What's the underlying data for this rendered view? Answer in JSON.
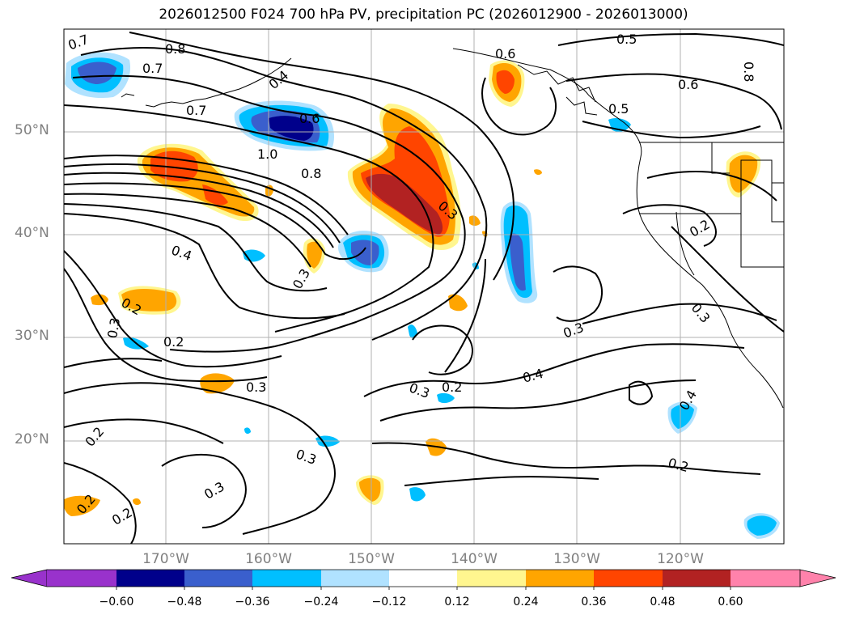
{
  "title": "2026012500 F024 700 hPa PV, precipitation PC (2026012900 - 2026013000)",
  "axes": {
    "lat_labels": [
      "50°N",
      "40°N",
      "30°N",
      "20°N"
    ],
    "lon_labels": [
      "170°W",
      "160°W",
      "150°W",
      "140°W",
      "130°W",
      "120°W"
    ]
  },
  "contour_labels": [
    "0.7",
    "0.8",
    "0.7",
    "0.4",
    "0.7",
    "0.6",
    "1.0",
    "0.8",
    "0.6",
    "0.5",
    "0.6",
    "0.8",
    "0.5",
    "0.3",
    "0.4",
    "0.3",
    "0.2",
    "0.2",
    "0.3",
    "0.2",
    "0.3",
    "0.3",
    "0.2",
    "0.3",
    "0.4",
    "0.2",
    "0.3",
    "0.2",
    "0.3",
    "0.2",
    "0.4",
    "0.2",
    "0.3"
  ],
  "colorbar": {
    "ticks": [
      "−0.60",
      "−0.48",
      "−0.36",
      "−0.24",
      "−0.12",
      "0.12",
      "0.24",
      "0.36",
      "0.48",
      "0.60"
    ],
    "colors": {
      "under": "#9932cc",
      "b1": "#00008b",
      "b2": "#3a5fcd",
      "b3": "#00bfff",
      "b4": "#b0e2ff",
      "mid": "#ffffff",
      "r1": "#fff68f",
      "r2": "#ffa500",
      "r3": "#ff4500",
      "r4": "#b22222",
      "over": "#ff82ab"
    }
  }
}
